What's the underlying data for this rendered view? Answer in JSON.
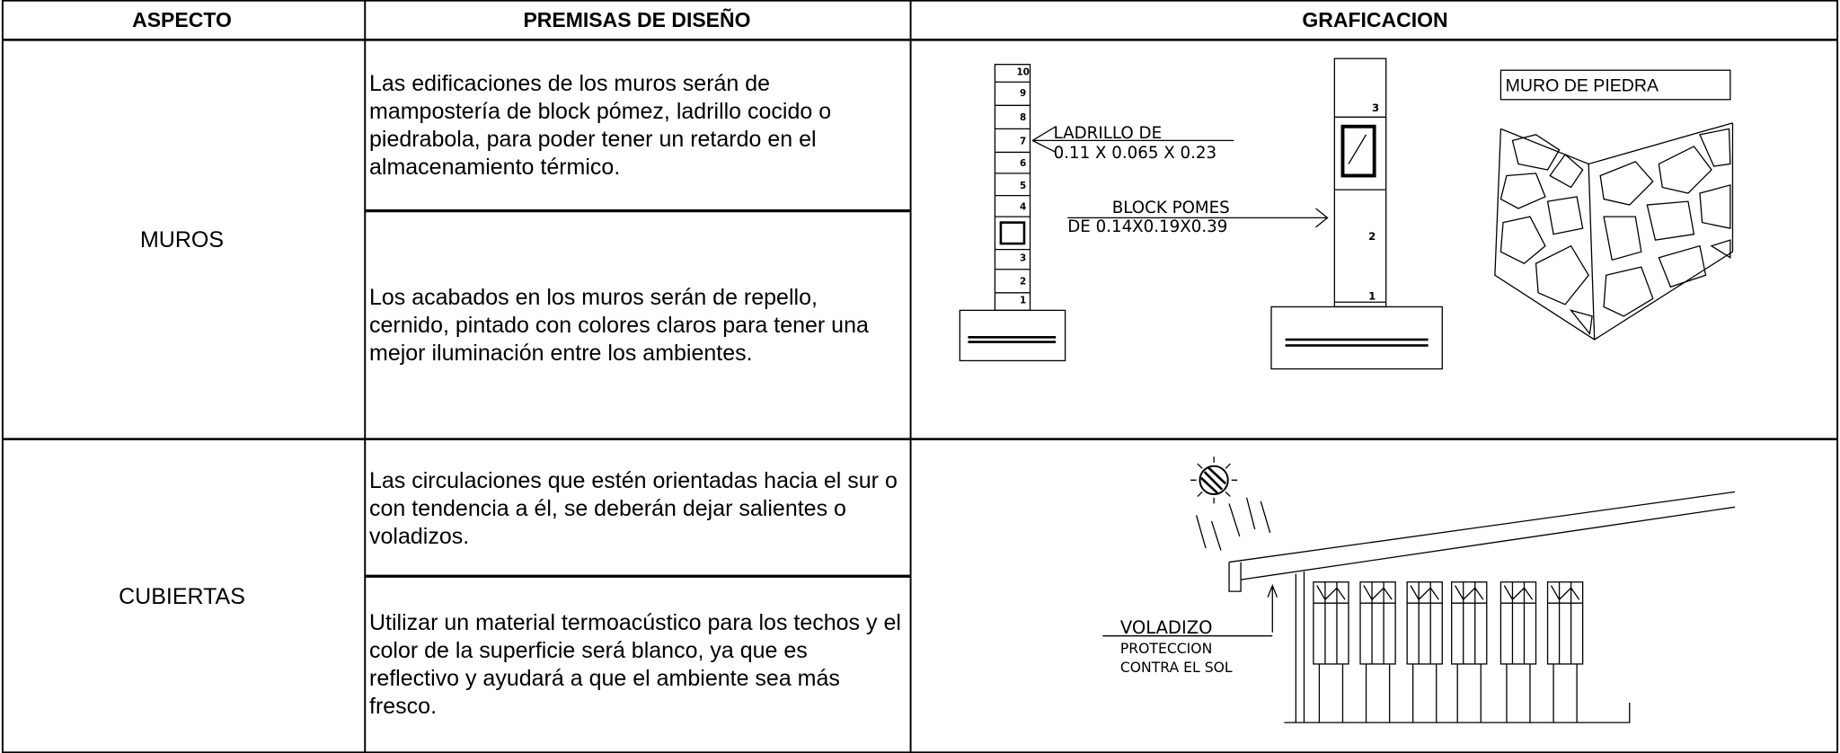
{
  "table": {
    "headers": [
      "ASPECTO",
      "PREMISAS DE DISEÑO",
      "GRAFICACION"
    ],
    "rows": [
      {
        "aspecto": "MUROS",
        "premisas": [
          "Las edificaciones de los muros serán de mampostería de block pómez, ladrillo cocido o piedrabola, para poder tener un retardo en el almacenamiento térmico.",
          "Los acabados en los muros serán de repello, cernido, pintado con colores claros para tener una mejor iluminación entre los ambientes."
        ],
        "graficacion": {
          "brick_numbers": [
            "10",
            "9",
            "8",
            "7",
            "6",
            "5",
            "4",
            "3",
            "2",
            "1"
          ],
          "brick_label": [
            "LADRILLO DE",
            "0.11 X 0.065 X 0.23"
          ],
          "block_label": [
            "BLOCK POMES",
            "DE 0.14X0.19X0.39"
          ],
          "block_numbers": [
            "3",
            "2",
            "1"
          ],
          "stone_label": "MURO DE PIEDRA"
        }
      },
      {
        "aspecto": "CUBIERTAS",
        "premisas": [
          "Las circulaciones que estén orientadas hacia el sur o con tendencia a él, se deberán dejar salientes o voladizos.",
          "Utilizar un material termoacústico para los techos y el color de la superficie será blanco, ya que es reflectivo y ayudará a que el ambiente sea más fresco."
        ],
        "graficacion": {
          "labels": [
            "VOLADIZO",
            "PROTECCION",
            "CONTRA EL SOL"
          ]
        }
      }
    ]
  }
}
